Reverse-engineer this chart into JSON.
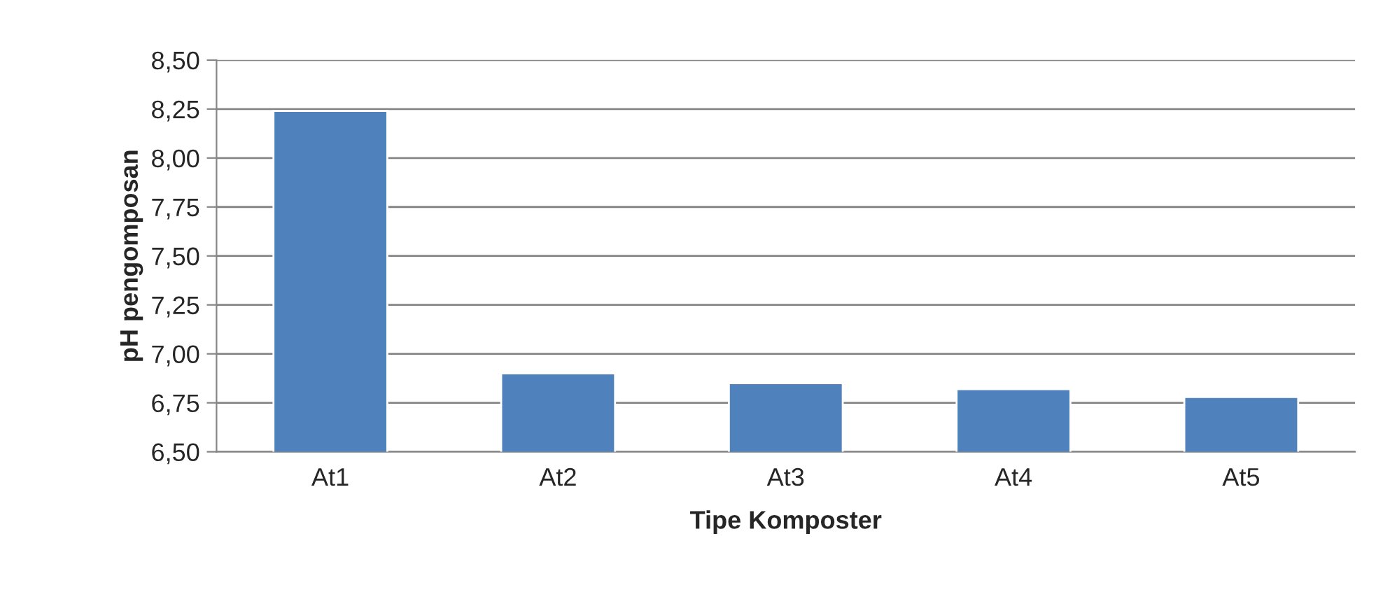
{
  "chart_data": {
    "type": "bar",
    "xlabel": "Tipe Komposter",
    "ylabel": "pH pengomposan",
    "categories": [
      "At1",
      "At2",
      "At3",
      "At4",
      "At5"
    ],
    "values": [
      8.24,
      6.9,
      6.85,
      6.82,
      6.78
    ],
    "color": "#4f81bd",
    "ylim": [
      6.5,
      8.5
    ],
    "yticks": [
      {
        "value": 6.5,
        "label": "6,50"
      },
      {
        "value": 6.75,
        "label": "6,75"
      },
      {
        "value": 7.0,
        "label": "7,00"
      },
      {
        "value": 7.25,
        "label": "7,25"
      },
      {
        "value": 7.5,
        "label": "7,50"
      },
      {
        "value": 7.75,
        "label": "7,75"
      },
      {
        "value": 8.0,
        "label": "8,00"
      },
      {
        "value": 8.25,
        "label": "8,25"
      },
      {
        "value": 8.5,
        "label": "8,50"
      }
    ],
    "grid": "y"
  }
}
